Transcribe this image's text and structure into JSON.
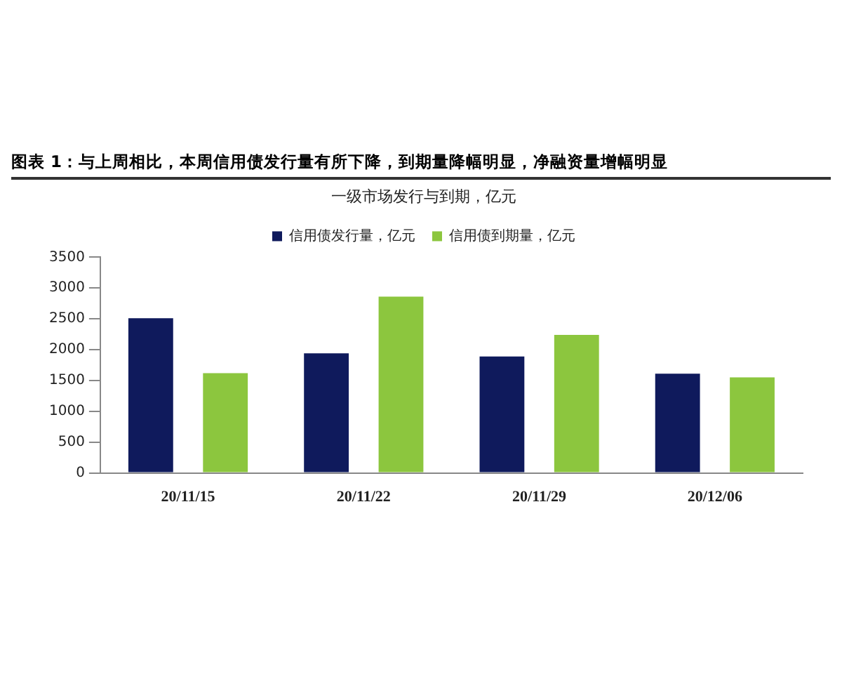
{
  "chart_data": {
    "type": "bar",
    "title": "图表 1：与上周相比，本周信用债发行量有所下降，到期量降幅明显，净融资量增幅明显",
    "subtitle": "一级市场发行与到期，亿元",
    "categories": [
      "20/11/15",
      "20/11/22",
      "20/11/29",
      "20/12/06"
    ],
    "series": [
      {
        "name": "信用债发行量，亿元",
        "color": "#0f1a5c",
        "values": [
          2510,
          1940,
          1890,
          1610
        ]
      },
      {
        "name": "信用债到期量，亿元",
        "color": "#8cc63e",
        "values": [
          1620,
          2860,
          2240,
          1550
        ]
      }
    ],
    "ylim": [
      0,
      3500
    ],
    "yticks": [
      0,
      500,
      1000,
      1500,
      2000,
      2500,
      3000,
      3500
    ],
    "grid": false,
    "legend": "top"
  }
}
